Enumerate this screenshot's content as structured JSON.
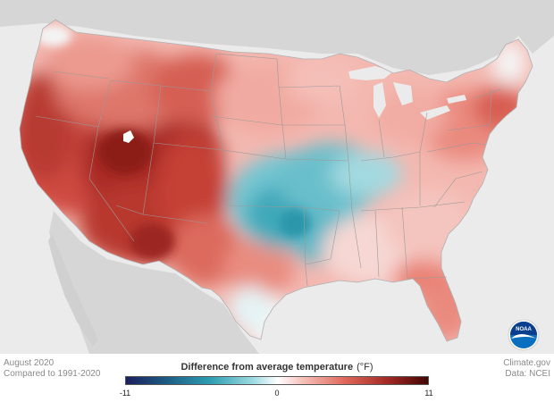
{
  "map": {
    "date": "August 2020",
    "baseline": "Compared to 1991-2020",
    "credit": "Climate.gov",
    "data_source": "Data: NCEI",
    "logo_text": "NOAA"
  },
  "legend": {
    "title": "Difference from average temperature",
    "unit": "(°F)",
    "min_label": "-11",
    "mid_label": "0",
    "max_label": "11",
    "range": [
      -11,
      11
    ],
    "colors": [
      "#1a1f5e",
      "#1d6e8a",
      "#3fb3c2",
      "#a9dfe5",
      "#ffffff",
      "#f4c0bc",
      "#e06a5c",
      "#a8302a",
      "#4a0505"
    ]
  },
  "colors": {
    "land_outside": "#d6d6d6",
    "water": "#ebebeb",
    "borders": "#9a9a9a",
    "logo_blue": "#0b6fbf"
  },
  "regions": {
    "southwest": "strong warm anomaly",
    "west_coast": "warm anomaly",
    "northern_plains": "warm anomaly",
    "south_central": "cool anomaly",
    "east": "slight warm anomaly",
    "florida": "warm anomaly"
  }
}
